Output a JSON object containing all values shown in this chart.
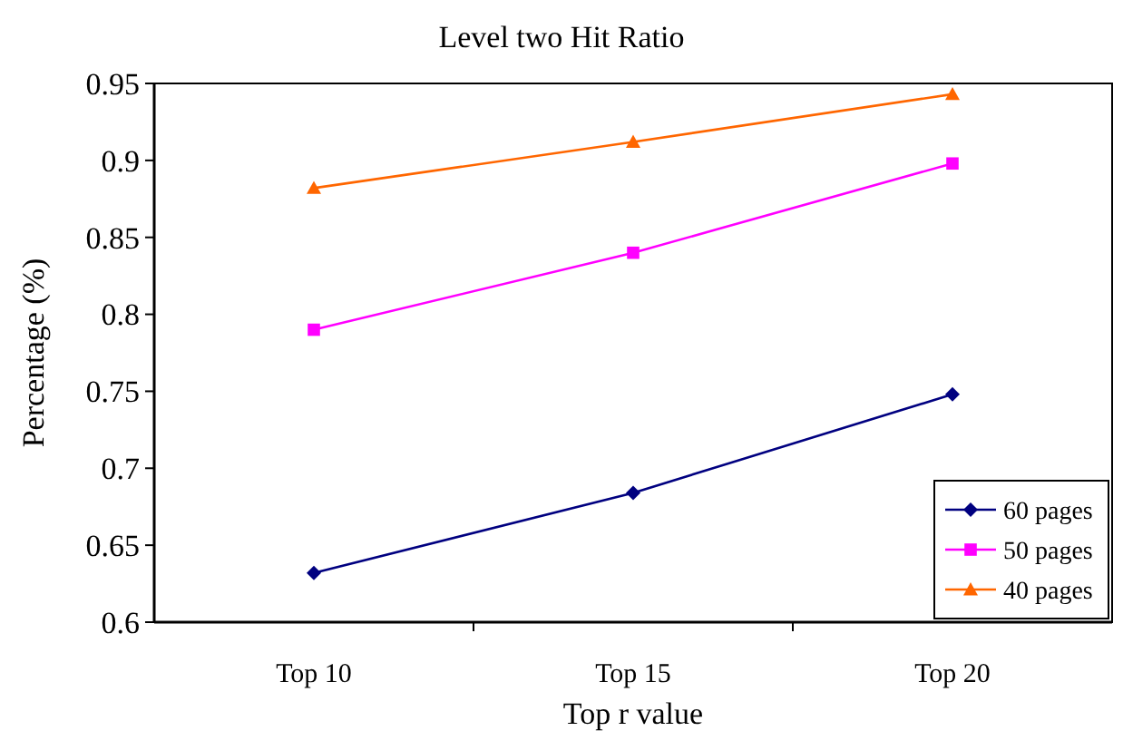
{
  "chart_data": {
    "type": "line",
    "title": "Level two Hit Ratio",
    "xlabel": "Top r value",
    "ylabel": "Percentage (%)",
    "categories": [
      "Top 10",
      "Top 15",
      "Top 20"
    ],
    "series": [
      {
        "name": "60 pages",
        "color": "#000080",
        "marker": "diamond",
        "values": [
          0.632,
          0.684,
          0.748
        ]
      },
      {
        "name": "50 pages",
        "color": "#ff00ff",
        "marker": "square",
        "values": [
          0.79,
          0.84,
          0.898
        ]
      },
      {
        "name": "40 pages",
        "color": "#ff6600",
        "marker": "triangle",
        "values": [
          0.882,
          0.912,
          0.943
        ]
      }
    ],
    "ylim": [
      0.6,
      0.95
    ],
    "yticks": [
      0.6,
      0.65,
      0.7,
      0.75,
      0.8,
      0.85,
      0.9,
      0.95
    ],
    "grid": false,
    "legend": "bottom right"
  }
}
